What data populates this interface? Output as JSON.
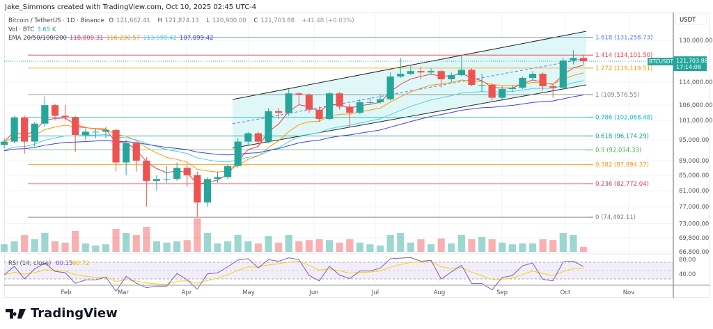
{
  "credit": "Jake_Simmons created with TradingView.com, Oct 10, 2025 02:45 UTC-4",
  "header": {
    "symbol": "Bitcoin / TetherUS · 1D · Binance",
    "o_label": "O",
    "o": "121,662.41",
    "h_label": "H",
    "h": "121,874.13",
    "l_label": "L",
    "l": "120,900.00",
    "c_label": "C",
    "c": "121,703.88",
    "change": "+41.48 (+0.03%)",
    "vol_label": "Vol · BTC",
    "vol": "3.65 K",
    "ema_label": "EMA 20/50/100/200",
    "ema20": "118,808.31",
    "ema50": "116,230.57",
    "ema100": "113,690.42",
    "ema200": "107,899.42"
  },
  "currency": "USDT",
  "last_price": {
    "symbol": "BTCUSDT",
    "price": "121,703.88",
    "countdown": "17:14:08"
  },
  "rsi": {
    "label": "RSI (14, close)",
    "value": "60.15",
    "ma": "60.72",
    "ticks": [
      "80.00",
      "40.00"
    ]
  },
  "logo": "TradingView",
  "colors": {
    "up": "#26a69a",
    "down": "#ef5350",
    "ema20": "#f23645",
    "ema50": "#ff9800",
    "ema100": "#4dd0e1",
    "ema200": "#3d3df0",
    "rsi": "#7e57c2",
    "rsi_ma": "#f5d300",
    "channel_fill": "#e0f7f7"
  },
  "chart_data": {
    "type": "candlestick",
    "scale": "log",
    "ylim": [
      64000,
      136000
    ],
    "price_ticks": [
      "130,000.00",
      "114,000.00",
      "106,000.00",
      "101,000.00",
      "95,000.00",
      "89,000.00",
      "85,000.00",
      "81,000.00",
      "77,000.00",
      "73,000.00",
      "69,800.00",
      "66,800.00"
    ],
    "time_ticks": [
      "Feb",
      "Mar",
      "Apr",
      "May",
      "Jun",
      "Jul",
      "Aug",
      "Sep",
      "Oct",
      "Nov"
    ],
    "candles": [
      [
        "Jan 1",
        93.5,
        95.5,
        92.5,
        94.5,
        18
      ],
      [
        "Jan 6",
        94.5,
        102.5,
        94,
        102,
        25
      ],
      [
        "Jan 11",
        102,
        102.5,
        91,
        94.5,
        40
      ],
      [
        "Jan 16",
        94.5,
        100.5,
        93,
        100,
        30
      ],
      [
        "Jan 21",
        100,
        109,
        99,
        106,
        45
      ],
      [
        "Jan 26",
        106,
        106.5,
        101,
        102.5,
        25
      ],
      [
        "Jan 31",
        102.5,
        106,
        101,
        102,
        22
      ],
      [
        "Feb 5",
        102,
        102.5,
        91.5,
        96.5,
        50
      ],
      [
        "Feb 10",
        96.5,
        98.5,
        95,
        97.5,
        20
      ],
      [
        "Feb 15",
        97.5,
        98.5,
        95.5,
        97.5,
        15
      ],
      [
        "Feb 20",
        97.5,
        99,
        95.5,
        98,
        18
      ],
      [
        "Feb 25",
        98,
        98.5,
        86,
        88.5,
        55
      ],
      [
        "Mar 2",
        88.5,
        95,
        85,
        94,
        45
      ],
      [
        "Mar 7",
        94,
        94.5,
        86,
        89,
        40
      ],
      [
        "Mar 12",
        89,
        90,
        77,
        83.5,
        60
      ],
      [
        "Mar 17",
        83.5,
        85,
        81,
        84,
        25
      ],
      [
        "Mar 22",
        84,
        87.5,
        83,
        84,
        22
      ],
      [
        "Mar 27",
        84,
        88.5,
        83.5,
        87,
        25
      ],
      [
        "Apr 1",
        87,
        88,
        82,
        85,
        28
      ],
      [
        "Apr 6",
        85,
        86,
        74.5,
        78,
        80
      ],
      [
        "Apr 11",
        78,
        84.5,
        77,
        84,
        45
      ],
      [
        "Apr 16",
        84,
        86,
        83,
        84.5,
        20
      ],
      [
        "Apr 21",
        84.5,
        88,
        84,
        87.5,
        25
      ],
      [
        "Apr 26",
        87.5,
        95.5,
        87,
        94.5,
        40
      ],
      [
        "May 1",
        94.5,
        97.5,
        93.5,
        97,
        25
      ],
      [
        "May 6",
        97,
        97.5,
        93.5,
        94.5,
        20
      ],
      [
        "May 11",
        94.5,
        105,
        94,
        104,
        38
      ],
      [
        "May 16",
        104,
        105,
        101.5,
        103.5,
        22
      ],
      [
        "May 21",
        103.5,
        111.5,
        102.5,
        110,
        40
      ],
      [
        "May 26",
        110,
        110.5,
        106.5,
        109.5,
        25
      ],
      [
        "May 31",
        109.5,
        110,
        103.5,
        104.5,
        28
      ],
      [
        "Jun 5",
        104.5,
        105.5,
        100.5,
        101.5,
        30
      ],
      [
        "Jun 10",
        101.5,
        110.5,
        101,
        110,
        28
      ],
      [
        "Jun 15",
        110,
        110.5,
        104.5,
        105.5,
        22
      ],
      [
        "Jun 20",
        105.5,
        106.5,
        99,
        103.5,
        30
      ],
      [
        "Jun 25",
        103.5,
        108,
        103,
        107,
        22
      ],
      [
        "Jun 30",
        107,
        108.5,
        106,
        107,
        18
      ],
      [
        "Jul 5",
        107,
        109.5,
        106.5,
        108,
        15
      ],
      [
        "Jul 10",
        108,
        117.5,
        107.5,
        116,
        40
      ],
      [
        "Jul 15",
        116,
        123,
        115.5,
        117,
        45
      ],
      [
        "Jul 20",
        117,
        120,
        116.5,
        118,
        22
      ],
      [
        "Jul 25",
        118,
        119.5,
        115,
        117.5,
        30
      ],
      [
        "Jul 30",
        117.5,
        119,
        116.5,
        118,
        18
      ],
      [
        "Aug 4",
        118,
        118.5,
        112,
        115,
        32
      ],
      [
        "Aug 9",
        115,
        117.5,
        114,
        116.5,
        20
      ],
      [
        "Aug 14",
        116.5,
        124,
        116,
        118.5,
        40
      ],
      [
        "Aug 19",
        118.5,
        119,
        112.5,
        113,
        30
      ],
      [
        "Aug 24",
        113,
        117,
        110.5,
        113,
        35
      ],
      [
        "Aug 29",
        113,
        113.5,
        107.5,
        108.5,
        30
      ],
      [
        "Sep 3",
        108.5,
        112.5,
        107.5,
        111.5,
        22
      ],
      [
        "Sep 8",
        111.5,
        113,
        110.5,
        112,
        18
      ],
      [
        "Sep 13",
        112,
        116,
        111.5,
        115.5,
        20
      ],
      [
        "Sep 18",
        115.5,
        118,
        114.5,
        117,
        20
      ],
      [
        "Sep 23",
        117,
        117.5,
        111,
        112.5,
        30
      ],
      [
        "Sep 28",
        112.5,
        113,
        108.5,
        112,
        28
      ],
      [
        "Oct 3",
        112,
        123,
        111.5,
        122,
        45
      ],
      [
        "Oct 8",
        122,
        126,
        120.5,
        123,
        40
      ],
      [
        "Oct 10",
        123,
        124,
        120.5,
        121.7,
        12
      ]
    ],
    "fibonacci": [
      {
        "level": "1.618",
        "price": "131,258.73",
        "value": 131258.73,
        "color": "#5b7cf0"
      },
      {
        "level": "1.414",
        "price": "124,101.50",
        "value": 124101.5,
        "color": "#f23645"
      },
      {
        "level": "1.272",
        "price": "119,119.51",
        "value": 119119.51,
        "color": "#ff9800"
      },
      {
        "level": "1",
        "price": "109,576.55",
        "value": 109576.55,
        "color": "#787b86"
      },
      {
        "level": "0.786",
        "price": "102,068.48",
        "value": 102068.48,
        "color": "#00bcd4"
      },
      {
        "level": "0.618",
        "price": "96,174.29",
        "value": 96174.29,
        "color": "#089981"
      },
      {
        "level": "0.5",
        "price": "92,034.33",
        "value": 92034.33,
        "color": "#4caf50"
      },
      {
        "level": "0.382",
        "price": "87,894.37",
        "value": 87894.37,
        "color": "#ff9800"
      },
      {
        "level": "0.236",
        "price": "82,772.04",
        "value": 82772.04,
        "color": "#f23645"
      },
      {
        "level": "0",
        "price": "74,492.11",
        "value": 74492.11,
        "color": "#787b86"
      }
    ]
  }
}
